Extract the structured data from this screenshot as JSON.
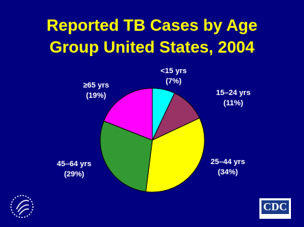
{
  "chart_data": {
    "type": "pie",
    "title": "Reported TB Cases by Age Group United States, 2004",
    "categories": [
      "<15 yrs",
      "15–24 yrs",
      "25–44 yrs",
      "45–64 yrs",
      "≥65 yrs"
    ],
    "values": [
      7,
      11,
      34,
      29,
      19
    ],
    "value_labels": [
      "(7%)",
      "(11%)",
      "(34%)",
      "(29%)",
      "(19%)"
    ],
    "colors": [
      "#00ffff",
      "#993366",
      "#ffff00",
      "#339933",
      "#ff00ff"
    ]
  },
  "cdc_logo": "CDC"
}
